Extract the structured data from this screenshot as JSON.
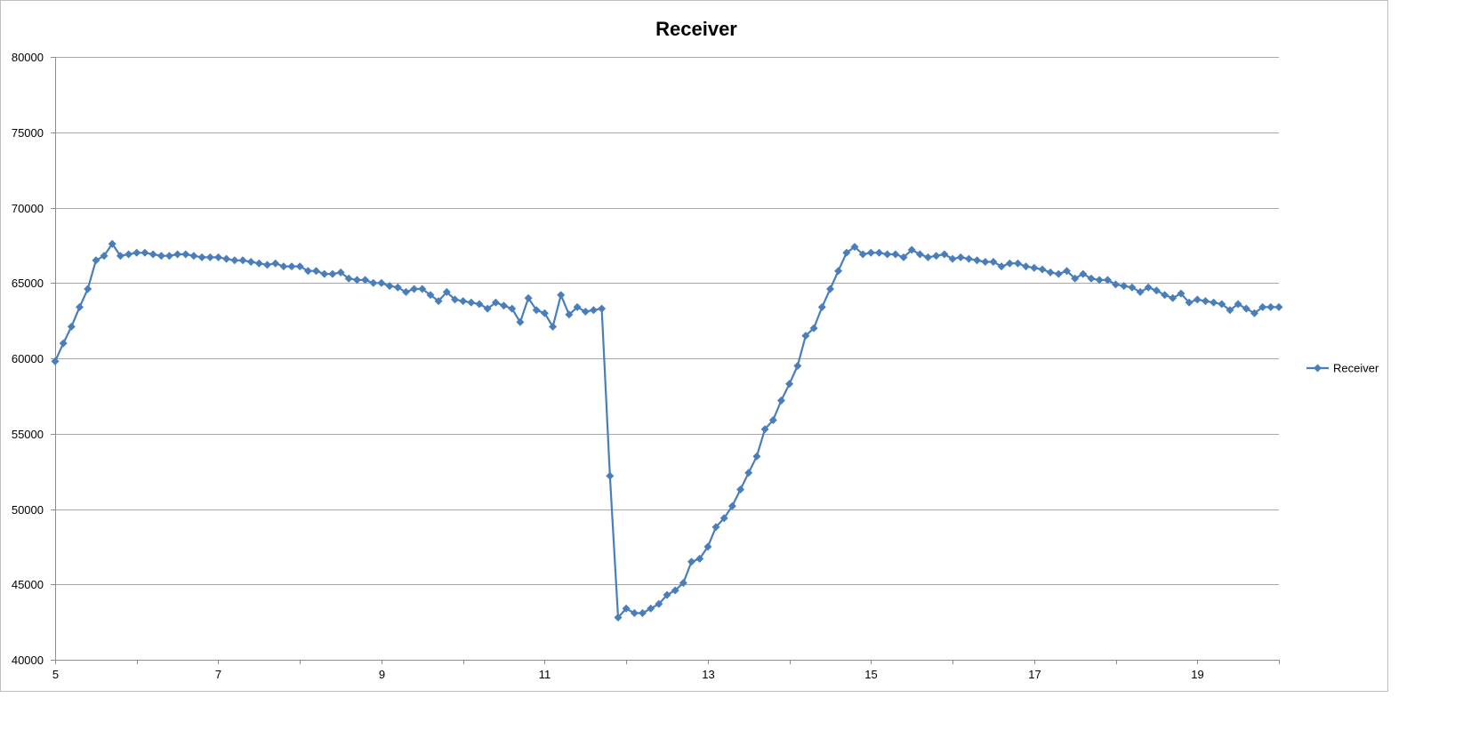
{
  "chart_data": {
    "type": "line",
    "title": "Receiver",
    "xlabel": "",
    "ylabel": "",
    "xlim": [
      5,
      20
    ],
    "ylim": [
      40000,
      80000
    ],
    "x_ticks": [
      "5",
      "7",
      "9",
      "11",
      "13",
      "15",
      "17",
      "19"
    ],
    "y_ticks": [
      "40000",
      "45000",
      "50000",
      "55000",
      "60000",
      "65000",
      "70000",
      "75000",
      "80000"
    ],
    "grid": "horizontal",
    "legend": "right",
    "series": [
      {
        "name": "Receiver",
        "color": "#4a7ebb",
        "marker": "diamond",
        "x": [
          5.0,
          5.1,
          5.2,
          5.3,
          5.4,
          5.5,
          5.6,
          5.7,
          5.8,
          5.9,
          6.0,
          6.1,
          6.2,
          6.3,
          6.4,
          6.5,
          6.6,
          6.7,
          6.8,
          6.9,
          7.0,
          7.1,
          7.2,
          7.3,
          7.4,
          7.5,
          7.6,
          7.7,
          7.8,
          7.9,
          8.0,
          8.1,
          8.2,
          8.3,
          8.4,
          8.5,
          8.6,
          8.7,
          8.8,
          8.9,
          9.0,
          9.1,
          9.2,
          9.3,
          9.4,
          9.5,
          9.6,
          9.7,
          9.8,
          9.9,
          10.0,
          10.1,
          10.2,
          10.3,
          10.4,
          10.5,
          10.6,
          10.7,
          10.8,
          10.9,
          11.0,
          11.1,
          11.2,
          11.3,
          11.4,
          11.5,
          11.6,
          11.7,
          11.8,
          11.9,
          12.0,
          12.1,
          12.2,
          12.3,
          12.4,
          12.5,
          12.6,
          12.7,
          12.8,
          12.9,
          13.0,
          13.1,
          13.2,
          13.3,
          13.4,
          13.5,
          13.6,
          13.7,
          13.8,
          13.9,
          14.0,
          14.1,
          14.2,
          14.3,
          14.4,
          14.5,
          14.6,
          14.7,
          14.8,
          14.9,
          15.0,
          15.1,
          15.2,
          15.3,
          15.4,
          15.5,
          15.6,
          15.7,
          15.8,
          15.9,
          16.0,
          16.1,
          16.2,
          16.3,
          16.4,
          16.5,
          16.6,
          16.7,
          16.8,
          16.9,
          17.0,
          17.1,
          17.2,
          17.3,
          17.4,
          17.5,
          17.6,
          17.7,
          17.8,
          17.9,
          18.0,
          18.1,
          18.2,
          18.3,
          18.4,
          18.5,
          18.6,
          18.7,
          18.8,
          18.9,
          19.0,
          19.1,
          19.2,
          19.3,
          19.4,
          19.5,
          19.6,
          19.7,
          19.8,
          19.9,
          20.0
        ],
        "values": [
          59800,
          61000,
          62100,
          63400,
          64600,
          66500,
          66800,
          67600,
          66800,
          66900,
          67000,
          67000,
          66900,
          66800,
          66800,
          66900,
          66900,
          66800,
          66700,
          66700,
          66700,
          66600,
          66500,
          66500,
          66400,
          66300,
          66200,
          66300,
          66100,
          66100,
          66100,
          65800,
          65800,
          65600,
          65600,
          65700,
          65300,
          65200,
          65200,
          65000,
          65000,
          64800,
          64700,
          64400,
          64600,
          64600,
          64200,
          63800,
          64400,
          63900,
          63800,
          63700,
          63600,
          63300,
          63700,
          63500,
          63300,
          62400,
          64000,
          63200,
          63000,
          62100,
          64200,
          62900,
          63400,
          63100,
          63200,
          63300,
          52200,
          42800,
          43400,
          43100,
          43100,
          43400,
          43700,
          44300,
          44600,
          45100,
          46500,
          46700,
          47500,
          48800,
          49400,
          50200,
          51300,
          52400,
          53500,
          55300,
          55900,
          57200,
          58300,
          59500,
          61500,
          62000,
          63400,
          64600,
          65800,
          67000,
          67400,
          66900,
          67000,
          67000,
          66900,
          66900,
          66700,
          67200,
          66900,
          66700,
          66800,
          66900,
          66600,
          66700,
          66600,
          66500,
          66400,
          66400,
          66100,
          66300,
          66300,
          66100,
          66000,
          65900,
          65700,
          65600,
          65800,
          65300,
          65600,
          65300,
          65200,
          65200,
          64900,
          64800,
          64700,
          64400,
          64700,
          64500,
          64200,
          64000,
          64300,
          63700,
          63900,
          63800,
          63700,
          63600,
          63200,
          63600,
          63300,
          63000,
          63400,
          63400,
          63400
        ]
      }
    ]
  }
}
